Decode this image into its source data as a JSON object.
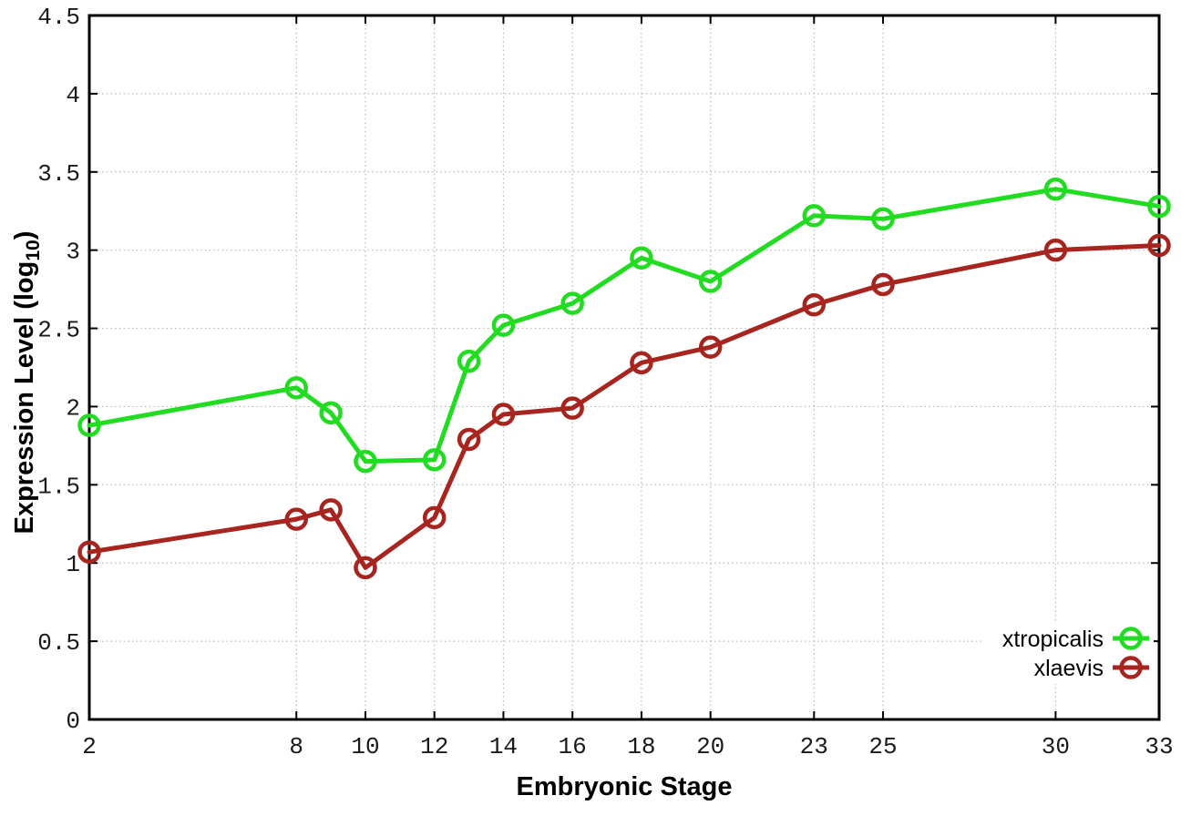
{
  "chart_data": {
    "type": "line",
    "title": "",
    "xlabel": "Embryonic Stage",
    "ylabel": "Expression Level (log10)",
    "ylabel_parts": {
      "main": "Expression Level (log",
      "sub": "10",
      "close": ")"
    },
    "x": [
      2,
      8,
      9,
      10,
      12,
      13,
      14,
      16,
      18,
      20,
      23,
      25,
      30,
      33
    ],
    "series": [
      {
        "name": "xtropicalis",
        "color": "#21dc21",
        "marker": "open-circle",
        "values": [
          1.88,
          2.12,
          1.96,
          1.65,
          1.66,
          2.29,
          2.52,
          2.66,
          2.95,
          2.8,
          3.22,
          3.2,
          3.39,
          3.28
        ]
      },
      {
        "name": "xlaevis",
        "color": "#a8241f",
        "marker": "open-circle",
        "values": [
          1.07,
          1.28,
          1.34,
          0.97,
          1.29,
          1.79,
          1.95,
          1.99,
          2.28,
          2.38,
          2.65,
          2.78,
          3.0,
          3.03
        ]
      }
    ],
    "xlim": [
      2,
      33
    ],
    "ylim": [
      0,
      4.5
    ],
    "xticks": [
      2,
      8,
      10,
      12,
      14,
      16,
      18,
      20,
      23,
      25,
      30,
      33
    ],
    "xtick_labels": [
      "2",
      "8",
      "10",
      "12",
      "14",
      "16",
      "18",
      "20",
      "23",
      "25",
      "30",
      "33"
    ],
    "yticks": [
      0,
      0.5,
      1,
      1.5,
      2,
      2.5,
      3,
      3.5,
      4,
      4.5
    ],
    "ytick_labels": [
      "0",
      "0.5",
      "1",
      "1.5",
      "2",
      "2.5",
      "3",
      "3.5",
      "4",
      "4.5"
    ],
    "grid": true,
    "legend_position": "bottom-right",
    "legend": [
      "xtropicalis",
      "xlaevis"
    ],
    "colors": {
      "background": "#ffffff",
      "border": "#000000",
      "gridline": "#b8b8b8",
      "tick_text": "#1a1a1a"
    }
  }
}
